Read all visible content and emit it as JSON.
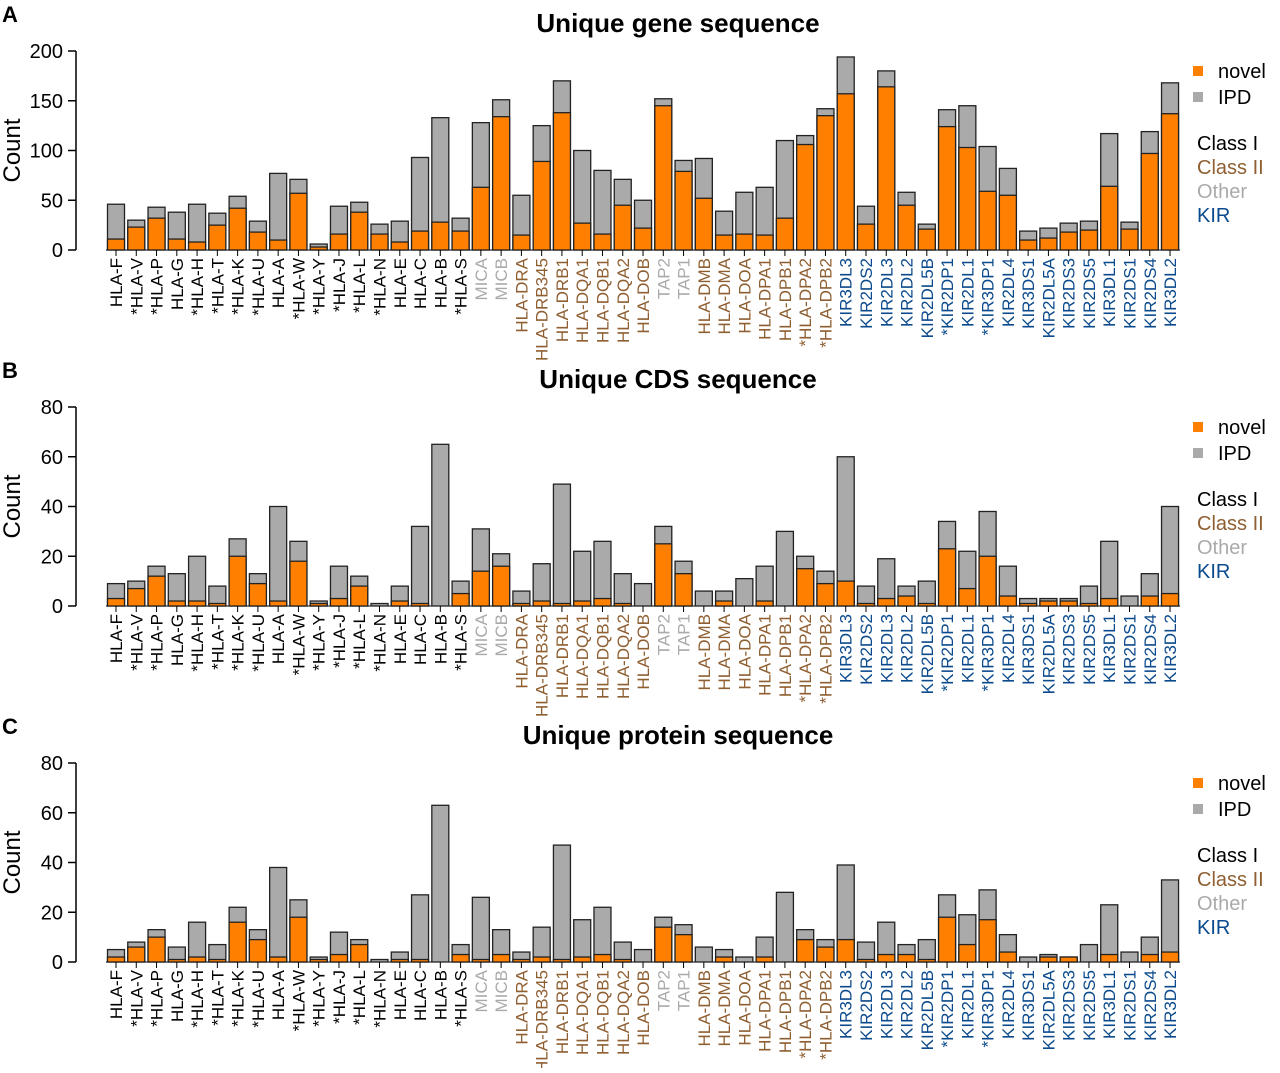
{
  "colors": {
    "novel": "#ff8000",
    "IPD": "#aaaaaa",
    "Class I": "#000000",
    "Class II": "#8f5f32",
    "Other": "#aaaaaa",
    "KIR": "#0b4a8c"
  },
  "legend": {
    "series": [
      "novel",
      "IPD"
    ],
    "groups": [
      "Class I",
      "Class II",
      "Other",
      "KIR"
    ]
  },
  "chart_data": [
    {
      "type": "bar",
      "stacked": true,
      "panel": "A",
      "title": "Unique gene sequence",
      "ylabel": "Count",
      "ylim": [
        0,
        200
      ],
      "yticks": [
        0,
        50,
        100,
        150,
        200
      ],
      "legend_position": "right",
      "categories": [
        "HLA-F",
        "*HLA-V",
        "*HLA-P",
        "HLA-G",
        "*HLA-H",
        "*HLA-T",
        "*HLA-K",
        "*HLA-U",
        "HLA-A",
        "*HLA-W",
        "*HLA-Y",
        "*HLA-J",
        "*HLA-L",
        "*HLA-N",
        "HLA-E",
        "HLA-C",
        "HLA-B",
        "*HLA-S",
        "MICA",
        "MICB",
        "HLA-DRA",
        "HLA-DRB345",
        "HLA-DRB1",
        "HLA-DQA1",
        "HLA-DQB1",
        "HLA-DQA2",
        "HLA-DOB",
        "TAP2",
        "TAP1",
        "HLA-DMB",
        "HLA-DMA",
        "HLA-DOA",
        "HLA-DPA1",
        "HLA-DPB1",
        "*HLA-DPA2",
        "*HLA-DPB2",
        "KIR3DL3",
        "KIR2DS2",
        "KIR2DL3",
        "KIR2DL2",
        "KIR2DL5B",
        "*KIR2DP1",
        "KIR2DL1",
        "*KIR3DP1",
        "KIR2DL4",
        "KIR3DS1",
        "KIR2DL5A",
        "KIR2DS3",
        "KIR2DS5",
        "KIR3DL1",
        "KIR2DS1",
        "KIR2DS4",
        "KIR3DL2"
      ],
      "series": [
        {
          "name": "novel",
          "values": [
            11,
            23,
            32,
            11,
            8,
            25,
            42,
            18,
            10,
            57,
            3,
            16,
            38,
            16,
            8,
            19,
            28,
            19,
            63,
            134,
            15,
            89,
            138,
            27,
            16,
            45,
            22,
            145,
            79,
            52,
            15,
            16,
            15,
            32,
            106,
            135,
            157,
            26,
            164,
            45,
            21,
            124,
            103,
            59,
            55,
            10,
            12,
            18,
            20,
            64,
            21,
            97,
            137
          ]
        },
        {
          "name": "IPD",
          "values": [
            35,
            7,
            11,
            27,
            38,
            12,
            12,
            11,
            67,
            14,
            3,
            28,
            10,
            10,
            21,
            74,
            105,
            13,
            65,
            17,
            40,
            36,
            32,
            73,
            64,
            26,
            28,
            7,
            11,
            40,
            24,
            42,
            48,
            78,
            9,
            7,
            37,
            18,
            16,
            13,
            5,
            17,
            42,
            45,
            27,
            9,
            10,
            9,
            9,
            53,
            7,
            22,
            31
          ]
        }
      ]
    },
    {
      "type": "bar",
      "stacked": true,
      "panel": "B",
      "title": "Unique CDS sequence",
      "ylabel": "Count",
      "ylim": [
        0,
        80
      ],
      "yticks": [
        0,
        20,
        40,
        60,
        80
      ],
      "legend_position": "right",
      "categories": "same as panel A",
      "series": [
        {
          "name": "novel",
          "values": [
            3,
            7,
            12,
            2,
            2,
            1,
            20,
            9,
            2,
            18,
            1,
            3,
            8,
            0,
            2,
            1,
            0,
            5,
            14,
            16,
            1,
            2,
            1,
            2,
            3,
            1,
            0,
            25,
            13,
            0,
            2,
            0,
            2,
            0,
            15,
            9,
            10,
            1,
            3,
            4,
            1,
            23,
            7,
            20,
            4,
            1,
            2,
            2,
            1,
            3,
            0,
            4,
            5
          ]
        },
        {
          "name": "IPD",
          "values": [
            6,
            3,
            4,
            11,
            18,
            7,
            7,
            4,
            38,
            8,
            1,
            13,
            4,
            1,
            6,
            31,
            65,
            5,
            17,
            5,
            5,
            15,
            48,
            20,
            23,
            12,
            9,
            7,
            5,
            6,
            4,
            11,
            14,
            30,
            5,
            5,
            50,
            7,
            16,
            4,
            9,
            11,
            15,
            18,
            12,
            2,
            1,
            1,
            7,
            23,
            4,
            9,
            35
          ]
        }
      ]
    },
    {
      "type": "bar",
      "stacked": true,
      "panel": "C",
      "title": "Unique protein sequence",
      "ylabel": "Count",
      "ylim": [
        0,
        80
      ],
      "yticks": [
        0,
        20,
        40,
        60,
        80
      ],
      "legend_position": "right",
      "categories": "same as panel A",
      "series": [
        {
          "name": "novel",
          "values": [
            2,
            6,
            10,
            1,
            2,
            1,
            16,
            9,
            2,
            18,
            1,
            3,
            7,
            0,
            1,
            1,
            0,
            3,
            1,
            3,
            1,
            2,
            1,
            2,
            3,
            1,
            0,
            14,
            11,
            0,
            2,
            0,
            2,
            0,
            9,
            6,
            9,
            1,
            3,
            3,
            1,
            18,
            7,
            17,
            4,
            0,
            2,
            2,
            0,
            3,
            0,
            3,
            4
          ]
        },
        {
          "name": "IPD",
          "values": [
            3,
            2,
            3,
            5,
            14,
            6,
            6,
            4,
            36,
            7,
            1,
            9,
            2,
            1,
            3,
            26,
            63,
            4,
            25,
            10,
            3,
            12,
            46,
            15,
            19,
            7,
            5,
            4,
            4,
            6,
            3,
            2,
            8,
            28,
            4,
            3,
            30,
            7,
            13,
            4,
            8,
            9,
            12,
            12,
            7,
            2,
            1,
            0,
            7,
            20,
            4,
            7,
            29
          ]
        }
      ]
    }
  ],
  "category_groups": [
    "Class I",
    "Class I",
    "Class I",
    "Class I",
    "Class I",
    "Class I",
    "Class I",
    "Class I",
    "Class I",
    "Class I",
    "Class I",
    "Class I",
    "Class I",
    "Class I",
    "Class I",
    "Class I",
    "Class I",
    "Class I",
    "Other",
    "Other",
    "Class II",
    "Class II",
    "Class II",
    "Class II",
    "Class II",
    "Class II",
    "Class II",
    "Other",
    "Other",
    "Class II",
    "Class II",
    "Class II",
    "Class II",
    "Class II",
    "Class II",
    "Class II",
    "KIR",
    "KIR",
    "KIR",
    "KIR",
    "KIR",
    "KIR",
    "KIR",
    "KIR",
    "KIR",
    "KIR",
    "KIR",
    "KIR",
    "KIR",
    "KIR",
    "KIR",
    "KIR",
    "KIR"
  ]
}
